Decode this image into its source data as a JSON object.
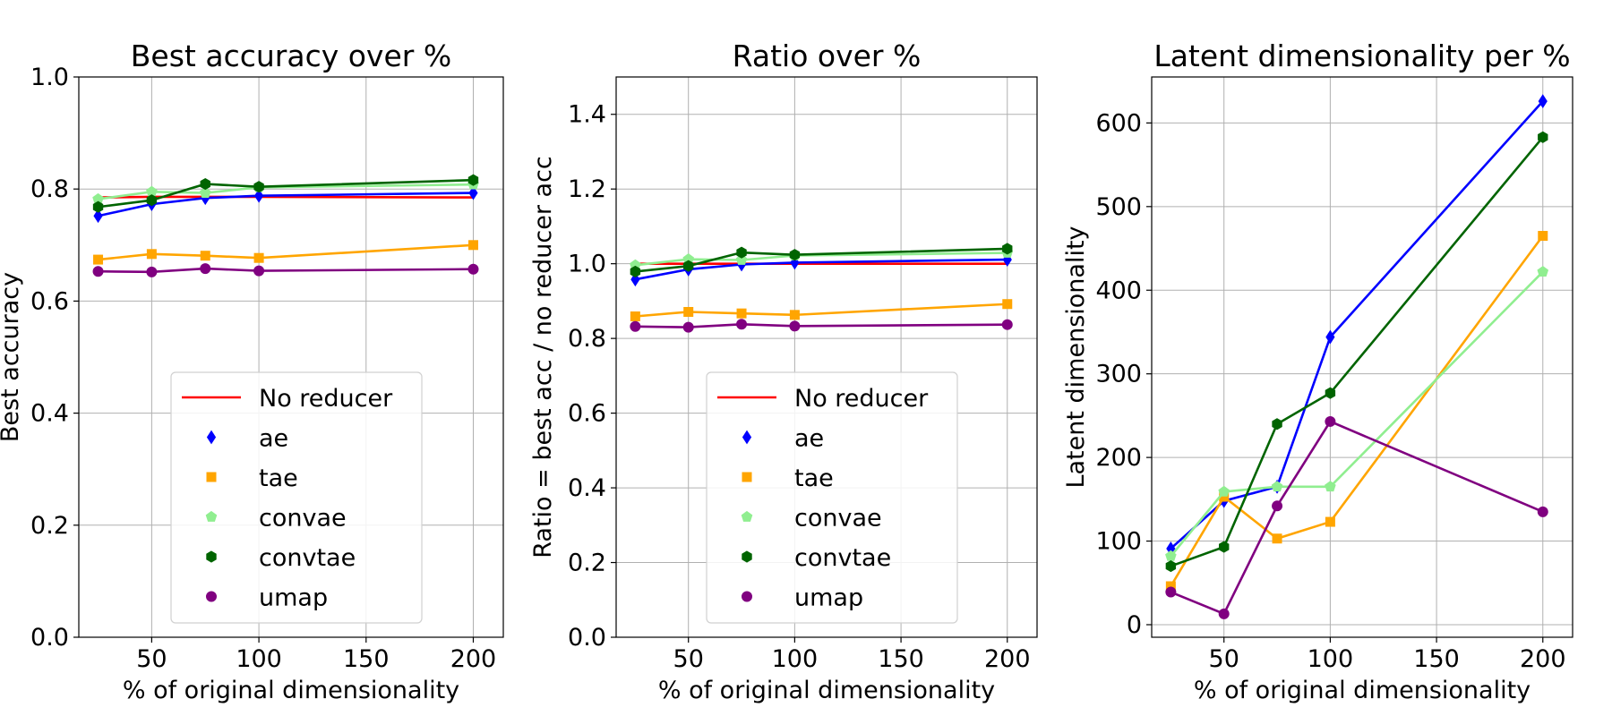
{
  "chart_data": [
    {
      "type": "line",
      "title": "Best accuracy over %",
      "xlabel": "% of original dimensionality",
      "ylabel": "Best accuracy",
      "xlim": [
        16,
        214
      ],
      "ylim": [
        0.0,
        1.0
      ],
      "xticks": [
        50,
        100,
        150,
        200
      ],
      "yticks": [
        0.0,
        0.2,
        0.4,
        0.6,
        0.8,
        1.0
      ],
      "ytick_labels": [
        "0.0",
        "0.2",
        "0.4",
        "0.6",
        "0.8",
        "1.0"
      ],
      "x": [
        25,
        50,
        75,
        100,
        200
      ],
      "legend": {
        "location": "lower center",
        "entries": [
          "No reducer",
          "ae",
          "tae",
          "convae",
          "convtae",
          "umap"
        ]
      },
      "series": [
        {
          "name": "No reducer",
          "color": "#ff0000",
          "marker": "none",
          "values": [
            0.785,
            0.786,
            0.786,
            0.786,
            0.785
          ]
        },
        {
          "name": "ae",
          "color": "#0000ff",
          "marker": "diamond",
          "values": [
            0.752,
            0.773,
            0.784,
            0.788,
            0.793
          ]
        },
        {
          "name": "tae",
          "color": "#ffa500",
          "marker": "square",
          "values": [
            0.674,
            0.684,
            0.681,
            0.677,
            0.7
          ]
        },
        {
          "name": "convae",
          "color": "#90ee90",
          "marker": "pentagon",
          "values": [
            0.782,
            0.795,
            0.793,
            0.803,
            0.808
          ]
        },
        {
          "name": "convtae",
          "color": "#006400",
          "marker": "hexagon",
          "values": [
            0.768,
            0.78,
            0.809,
            0.804,
            0.816
          ]
        },
        {
          "name": "umap",
          "color": "#800080",
          "marker": "circle",
          "values": [
            0.653,
            0.652,
            0.658,
            0.654,
            0.657
          ]
        }
      ]
    },
    {
      "type": "line",
      "title": "Ratio over %",
      "xlabel": "% of original dimensionality",
      "ylabel": "Ratio = best acc / no reducer acc",
      "xlim": [
        16,
        214
      ],
      "ylim": [
        0.0,
        1.5
      ],
      "xticks": [
        50,
        100,
        150,
        200
      ],
      "yticks": [
        0.0,
        0.2,
        0.4,
        0.6,
        0.8,
        1.0,
        1.2,
        1.4
      ],
      "ytick_labels": [
        "0.0",
        "0.2",
        "0.4",
        "0.6",
        "0.8",
        "1.0",
        "1.2",
        "1.4"
      ],
      "x": [
        25,
        50,
        75,
        100,
        200
      ],
      "legend": {
        "location": "lower center",
        "entries": [
          "No reducer",
          "ae",
          "tae",
          "convae",
          "convtae",
          "umap"
        ]
      },
      "series": [
        {
          "name": "No reducer",
          "color": "#ff0000",
          "marker": "none",
          "values": [
            1.0,
            1.0,
            1.0,
            1.0,
            1.0
          ]
        },
        {
          "name": "ae",
          "color": "#0000ff",
          "marker": "diamond",
          "values": [
            0.958,
            0.985,
            0.998,
            1.003,
            1.011
          ]
        },
        {
          "name": "tae",
          "color": "#ffa500",
          "marker": "square",
          "values": [
            0.859,
            0.871,
            0.867,
            0.863,
            0.892
          ]
        },
        {
          "name": "convae",
          "color": "#90ee90",
          "marker": "pentagon",
          "values": [
            0.996,
            1.012,
            1.01,
            1.022,
            1.029
          ]
        },
        {
          "name": "convtae",
          "color": "#006400",
          "marker": "hexagon",
          "values": [
            0.979,
            0.994,
            1.03,
            1.024,
            1.04
          ]
        },
        {
          "name": "umap",
          "color": "#800080",
          "marker": "circle",
          "values": [
            0.832,
            0.83,
            0.838,
            0.833,
            0.837
          ]
        }
      ]
    },
    {
      "type": "line",
      "title": "Latent dimensionality per %",
      "xlabel": "% of original dimensionality",
      "ylabel": "Latent dimensionality",
      "xlim": [
        16,
        214
      ],
      "ylim": [
        -15,
        655
      ],
      "xticks": [
        50,
        100,
        150,
        200
      ],
      "yticks": [
        0,
        100,
        200,
        300,
        400,
        500,
        600
      ],
      "ytick_labels": [
        "0",
        "100",
        "200",
        "300",
        "400",
        "500",
        "600"
      ],
      "x": [
        25,
        50,
        75,
        100,
        200
      ],
      "series": [
        {
          "name": "ae",
          "color": "#0000ff",
          "marker": "diamond",
          "values": [
            91,
            148,
            165,
            344,
            626
          ]
        },
        {
          "name": "tae",
          "color": "#ffa500",
          "marker": "square",
          "values": [
            46,
            153,
            103,
            123,
            465
          ]
        },
        {
          "name": "convae",
          "color": "#90ee90",
          "marker": "pentagon",
          "values": [
            82,
            159,
            165,
            165,
            422
          ]
        },
        {
          "name": "convtae",
          "color": "#006400",
          "marker": "hexagon",
          "values": [
            70,
            93,
            240,
            277,
            583
          ]
        },
        {
          "name": "umap",
          "color": "#800080",
          "marker": "circle",
          "values": [
            39,
            13,
            142,
            243,
            135
          ]
        }
      ]
    }
  ]
}
